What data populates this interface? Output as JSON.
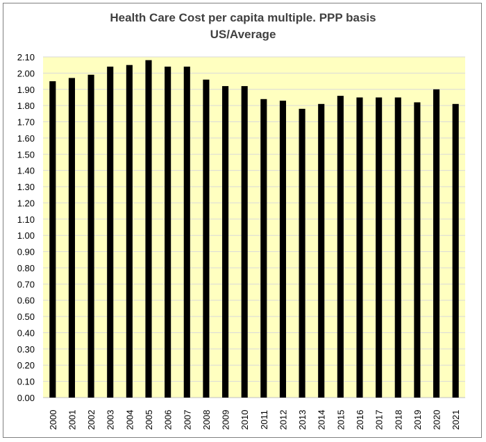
{
  "chart_data": {
    "type": "bar",
    "title": "Health Care Cost per capita multiple. PPP basis",
    "subtitle": "US/Average",
    "xlabel": "",
    "ylabel": "",
    "ylim": [
      0,
      2.1
    ],
    "ytick_step": 0.1,
    "ytick_labels": [
      "0.00",
      "0.10",
      "0.20",
      "0.30",
      "0.40",
      "0.50",
      "0.60",
      "0.70",
      "0.80",
      "0.90",
      "1.00",
      "1.10",
      "1.20",
      "1.30",
      "1.40",
      "1.50",
      "1.60",
      "1.70",
      "1.80",
      "1.90",
      "2.00",
      "2.10"
    ],
    "categories": [
      "2000",
      "2001",
      "2002",
      "2003",
      "2004",
      "2005",
      "2006",
      "2007",
      "2008",
      "2009",
      "2010",
      "2011",
      "2012",
      "2013",
      "2014",
      "2015",
      "2016",
      "2017",
      "2018",
      "2019",
      "2020",
      "2021"
    ],
    "values": [
      1.95,
      1.97,
      1.99,
      2.04,
      2.05,
      2.08,
      2.04,
      2.04,
      1.96,
      1.92,
      1.92,
      1.84,
      1.83,
      1.78,
      1.81,
      1.86,
      1.85,
      1.85,
      1.85,
      1.82,
      1.9,
      1.81
    ],
    "grid": true,
    "legend": "none",
    "colors": {
      "bar": "#000000",
      "plot_background": "#ffffc0",
      "gridline": "#d9d9d9",
      "axis_text": "#000000",
      "title": "#404040"
    }
  }
}
